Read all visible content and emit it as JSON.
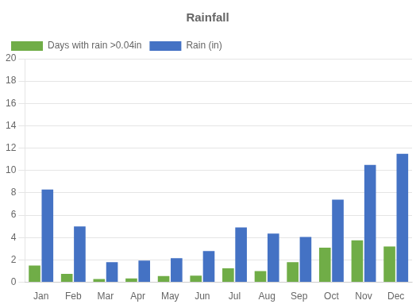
{
  "chart_data": {
    "type": "bar",
    "title": "Rainfall",
    "categories": [
      "Jan",
      "Feb",
      "Mar",
      "Apr",
      "May",
      "Jun",
      "Jul",
      "Aug",
      "Sep",
      "Oct",
      "Nov",
      "Dec"
    ],
    "series": [
      {
        "name": "Days with rain >0.04in",
        "color": "#70AD47",
        "values": [
          1.5,
          0.75,
          0.3,
          0.35,
          0.55,
          0.6,
          1.25,
          1.0,
          1.8,
          3.1,
          3.75,
          3.2
        ]
      },
      {
        "name": "Rain (in)",
        "color": "#4472C4",
        "values": [
          8.3,
          5.0,
          1.8,
          1.95,
          2.15,
          2.8,
          4.9,
          4.35,
          4.05,
          7.4,
          10.5,
          11.5
        ]
      }
    ],
    "ylim": [
      0,
      20
    ],
    "yticks": [
      0,
      2,
      4,
      6,
      8,
      10,
      12,
      14,
      16,
      18,
      20
    ],
    "grid": true,
    "legend": "upper left"
  }
}
